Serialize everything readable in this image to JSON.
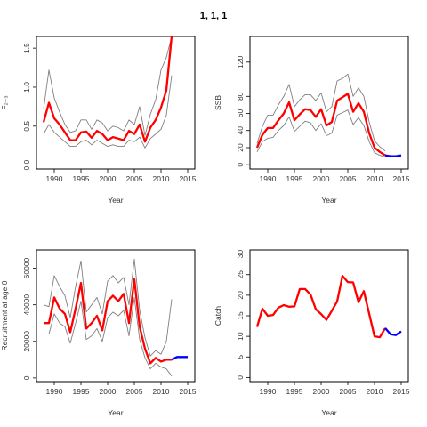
{
  "page": {
    "title": "1, 1, 1"
  },
  "style": {
    "main_color": "#ff0000",
    "projection_color": "#0000ff",
    "ci_color": "#7f7f7f",
    "frame_color": "#000000"
  },
  "chart_data": [
    {
      "type": "line",
      "xlabel": "Year",
      "ylabel": "F₂₋₃",
      "xlim": [
        1987,
        2016
      ],
      "ylim": [
        -0.05,
        1.65
      ],
      "xticks": [
        1990,
        1995,
        2000,
        2005,
        2010,
        2015
      ],
      "yticks": [
        0.0,
        0.5,
        1.0,
        1.5
      ],
      "ytick_labels": [
        "0.0",
        "0.5",
        "1.0",
        "1.5"
      ],
      "series": [
        {
          "role": "estimate",
          "x": [
            1988,
            1989,
            1990,
            1991,
            1992,
            1993,
            1994,
            1995,
            1996,
            1997,
            1998,
            1999,
            2000,
            2001,
            2002,
            2003,
            2004,
            2005,
            2006,
            2007,
            2008,
            2009,
            2010,
            2011,
            2012
          ],
          "values": [
            0.55,
            0.8,
            0.6,
            0.52,
            0.42,
            0.32,
            0.32,
            0.42,
            0.43,
            0.35,
            0.44,
            0.4,
            0.32,
            0.36,
            0.34,
            0.32,
            0.44,
            0.4,
            0.52,
            0.3,
            0.48,
            0.58,
            0.74,
            0.96,
            1.65
          ]
        },
        {
          "role": "upper",
          "x": [
            1988,
            1989,
            1990,
            1991,
            1992,
            1993,
            1994,
            1995,
            1996,
            1997,
            1998,
            1999,
            2000,
            2001,
            2002,
            2003,
            2004,
            2005,
            2006,
            2007,
            2008,
            2009,
            2010,
            2011,
            2012
          ],
          "values": [
            0.72,
            1.22,
            0.86,
            0.68,
            0.52,
            0.42,
            0.44,
            0.58,
            0.58,
            0.46,
            0.58,
            0.54,
            0.44,
            0.5,
            0.48,
            0.44,
            0.58,
            0.52,
            0.75,
            0.38,
            0.65,
            0.84,
            1.22,
            1.38,
            1.65
          ]
        },
        {
          "role": "lower",
          "x": [
            1988,
            1989,
            1990,
            1991,
            1992,
            1993,
            1994,
            1995,
            1996,
            1997,
            1998,
            1999,
            2000,
            2001,
            2002,
            2003,
            2004,
            2005,
            2006,
            2007,
            2008,
            2009,
            2010,
            2011,
            2012
          ],
          "values": [
            0.4,
            0.52,
            0.42,
            0.36,
            0.3,
            0.24,
            0.24,
            0.3,
            0.32,
            0.26,
            0.32,
            0.28,
            0.24,
            0.26,
            0.24,
            0.24,
            0.32,
            0.3,
            0.36,
            0.22,
            0.34,
            0.4,
            0.46,
            0.64,
            1.15
          ]
        }
      ]
    },
    {
      "type": "line",
      "xlabel": "Year",
      "ylabel": "SSB",
      "xlim": [
        1987,
        2016
      ],
      "ylim": [
        -5,
        150
      ],
      "xticks": [
        1990,
        1995,
        2000,
        2005,
        2010,
        2015
      ],
      "yticks": [
        0,
        20,
        40,
        60,
        80,
        120
      ],
      "ytick_labels": [
        "0",
        "20",
        "40",
        "60",
        "80",
        "120"
      ],
      "series": [
        {
          "role": "estimate",
          "x": [
            1988,
            1989,
            1990,
            1991,
            1992,
            1993,
            1994,
            1995,
            1996,
            1997,
            1998,
            1999,
            2000,
            2001,
            2002,
            2003,
            2004,
            2005,
            2006,
            2007,
            2008,
            2009,
            2010,
            2011,
            2012
          ],
          "values": [
            20,
            35,
            43,
            43,
            52,
            60,
            73,
            52,
            59,
            65,
            64,
            56,
            65,
            46,
            50,
            75,
            79,
            83,
            62,
            72,
            62,
            37,
            20,
            15,
            11
          ]
        },
        {
          "role": "upper",
          "x": [
            1988,
            1989,
            1990,
            1991,
            1992,
            1993,
            1994,
            1995,
            1996,
            1997,
            1998,
            1999,
            2000,
            2001,
            2002,
            2003,
            2004,
            2005,
            2006,
            2007,
            2008,
            2009,
            2010,
            2011,
            2012
          ],
          "values": [
            25,
            45,
            58,
            58,
            70,
            80,
            94,
            68,
            76,
            82,
            82,
            75,
            84,
            62,
            68,
            98,
            101,
            106,
            80,
            90,
            80,
            50,
            28,
            21,
            16
          ]
        },
        {
          "role": "lower",
          "x": [
            1988,
            1989,
            1990,
            1991,
            1992,
            1993,
            1994,
            1995,
            1996,
            1997,
            1998,
            1999,
            2000,
            2001,
            2002,
            2003,
            2004,
            2005,
            2006,
            2007,
            2008,
            2009,
            2010,
            2011,
            2012,
            2013
          ],
          "values": [
            15,
            27,
            31,
            32,
            40,
            46,
            56,
            39,
            45,
            51,
            49,
            40,
            48,
            34,
            37,
            58,
            61,
            64,
            47,
            55,
            46,
            27,
            14,
            11,
            9,
            11
          ]
        },
        {
          "role": "projection",
          "x": [
            2012,
            2013,
            2014,
            2015
          ],
          "values": [
            11,
            10,
            10,
            11
          ]
        }
      ]
    },
    {
      "type": "line",
      "xlabel": "Year",
      "ylabel": "Recruitment at age 0",
      "xlim": [
        1987,
        2016
      ],
      "ylim": [
        -2000,
        70000
      ],
      "xticks": [
        1990,
        1995,
        2000,
        2005,
        2010,
        2015
      ],
      "yticks": [
        0,
        20000,
        40000,
        60000
      ],
      "ytick_labels": [
        "0",
        "20000",
        "40000",
        "60000"
      ],
      "series": [
        {
          "role": "estimate",
          "x": [
            1988,
            1989,
            1990,
            1991,
            1992,
            1993,
            1994,
            1995,
            1996,
            1997,
            1998,
            1999,
            2000,
            2001,
            2002,
            2003,
            2004,
            2005,
            2006,
            2007,
            2008,
            2009,
            2010,
            2011,
            2012
          ],
          "values": [
            30000,
            30000,
            44000,
            38000,
            35000,
            25000,
            38000,
            52000,
            27000,
            30000,
            34000,
            26000,
            42000,
            45000,
            42000,
            46000,
            30000,
            54000,
            28000,
            16000,
            8000,
            11000,
            9000,
            10000,
            10000
          ]
        },
        {
          "role": "upper",
          "x": [
            1988,
            1989,
            1990,
            1991,
            1992,
            1993,
            1994,
            1995,
            1996,
            1997,
            1998,
            1999,
            2000,
            2001,
            2002,
            2003,
            2004,
            2005,
            2006,
            2007,
            2008,
            2009,
            2010,
            2011,
            2012
          ],
          "values": [
            40000,
            39000,
            56000,
            50000,
            45000,
            33000,
            50000,
            64000,
            36000,
            40000,
            44000,
            35000,
            53000,
            56000,
            52000,
            55000,
            40000,
            65000,
            37000,
            22000,
            12000,
            15000,
            13000,
            20000,
            43000
          ]
        },
        {
          "role": "lower",
          "x": [
            1988,
            1989,
            1990,
            1991,
            1992,
            1993,
            1994,
            1995,
            1996,
            1997,
            1998,
            1999,
            2000,
            2001,
            2002,
            2003,
            2004,
            2005,
            2006,
            2007,
            2008,
            2009,
            2010,
            2011,
            2012
          ],
          "values": [
            24000,
            24000,
            35000,
            30000,
            28000,
            19000,
            30000,
            42000,
            21000,
            23000,
            27000,
            20000,
            33000,
            36000,
            34000,
            37000,
            23000,
            44000,
            21000,
            11000,
            5000,
            8000,
            6000,
            5000,
            1000
          ]
        },
        {
          "role": "projection",
          "x": [
            2012,
            2013,
            2014,
            2015
          ],
          "values": [
            10000,
            11500,
            11500,
            11500
          ]
        }
      ]
    },
    {
      "type": "line",
      "xlabel": "Year",
      "ylabel": "Catch",
      "xlim": [
        1987,
        2016
      ],
      "ylim": [
        -1,
        31
      ],
      "xticks": [
        1990,
        1995,
        2000,
        2005,
        2010,
        2015
      ],
      "yticks": [
        0,
        5,
        10,
        15,
        20,
        25,
        30
      ],
      "ytick_labels": [
        "0",
        "5",
        "10",
        "15",
        "20",
        "25",
        "30"
      ],
      "series": [
        {
          "role": "estimate",
          "x": [
            1988,
            1989,
            1990,
            1991,
            1992,
            1993,
            1994,
            1995,
            1996,
            1997,
            1998,
            1999,
            2000,
            2001,
            2002,
            2003,
            2004,
            2005,
            2006,
            2007,
            2008,
            2009,
            2010,
            2011,
            2012
          ],
          "values": [
            12.3,
            16.7,
            15,
            15.2,
            17,
            17.6,
            17.2,
            17.3,
            21.5,
            21.5,
            20.2,
            16.6,
            15.4,
            14,
            16.2,
            18.5,
            24.7,
            23.2,
            23.1,
            18.3,
            21,
            15.5,
            10,
            9.8,
            12
          ]
        },
        {
          "role": "projection",
          "x": [
            2012,
            2013,
            2014,
            2015
          ],
          "values": [
            12,
            10.5,
            10.3,
            11.2
          ]
        }
      ]
    }
  ]
}
